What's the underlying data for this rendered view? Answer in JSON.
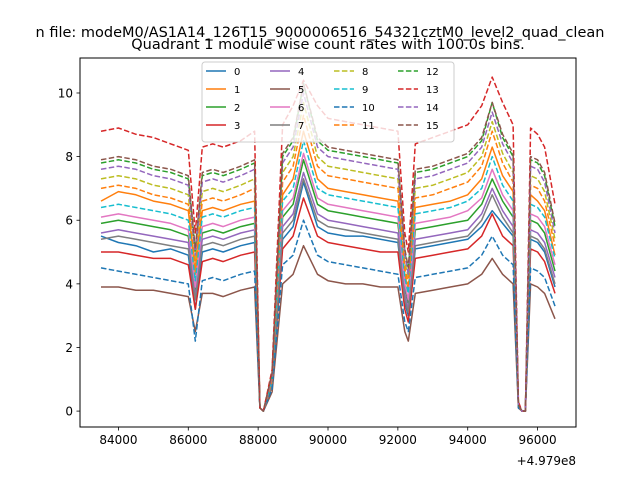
{
  "chart_data": {
    "type": "line",
    "suptitle": "n file: modeM0/AS1A14_126T15_9000006516_54321cztM0_level2_quad_clean",
    "title": "Quadrant 1 module wise count rates with 100.0s bins.",
    "xlabel": "",
    "ylabel": "",
    "x_offset_label": "+4.979e8",
    "xlim": [
      82900,
      97100
    ],
    "ylim": [
      -0.5,
      11.1
    ],
    "xticks": [
      84000,
      86000,
      88000,
      90000,
      92000,
      94000,
      96000
    ],
    "xtick_labels": [
      "84000",
      "86000",
      "88000",
      "90000",
      "92000",
      "94000",
      "96000"
    ],
    "yticks": [
      0,
      2,
      4,
      6,
      8,
      10
    ],
    "ytick_labels": [
      "0",
      "2",
      "4",
      "6",
      "8",
      "10"
    ],
    "legend_position": "upper center",
    "x": [
      83500,
      84000,
      84500,
      85000,
      85500,
      86000,
      86200,
      86400,
      86700,
      87000,
      87500,
      87900,
      88050,
      88150,
      88400,
      88700,
      89000,
      89300,
      89700,
      90000,
      90500,
      91000,
      91500,
      92000,
      92200,
      92300,
      92500,
      93000,
      93500,
      94000,
      94400,
      94700,
      95000,
      95300,
      95450,
      95550,
      95650,
      95800,
      96000,
      96200,
      96500
    ],
    "series": [
      {
        "name": "0",
        "color": "#1f77b4",
        "dash": "solid",
        "values": [
          5.5,
          5.3,
          5.2,
          5.0,
          5.1,
          4.9,
          3.2,
          5.0,
          5.1,
          5.0,
          5.2,
          5.3,
          0.1,
          0.0,
          0.8,
          5.4,
          5.8,
          7.2,
          5.8,
          5.6,
          5.5,
          5.5,
          5.4,
          5.3,
          3.4,
          3.0,
          5.1,
          5.2,
          5.3,
          5.4,
          5.8,
          6.3,
          5.9,
          5.5,
          0.2,
          0.0,
          0.0,
          5.4,
          5.3,
          5.0,
          3.9
        ]
      },
      {
        "name": "1",
        "color": "#ff7f0e",
        "dash": "solid",
        "values": [
          6.6,
          6.9,
          6.8,
          6.6,
          6.5,
          6.3,
          4.3,
          6.3,
          6.4,
          6.3,
          6.5,
          6.6,
          0.1,
          0.0,
          1.0,
          6.8,
          7.3,
          8.8,
          7.3,
          7.0,
          6.9,
          6.8,
          6.7,
          6.6,
          4.3,
          3.8,
          6.4,
          6.5,
          6.6,
          6.8,
          7.3,
          8.3,
          7.4,
          6.9,
          0.2,
          0.0,
          0.0,
          6.8,
          6.6,
          6.3,
          4.9
        ]
      },
      {
        "name": "2",
        "color": "#2ca02c",
        "dash": "solid",
        "values": [
          5.9,
          6.0,
          5.9,
          5.8,
          5.7,
          5.5,
          3.8,
          5.6,
          5.7,
          5.6,
          5.8,
          5.9,
          0.1,
          0.0,
          0.9,
          6.1,
          6.5,
          7.9,
          6.5,
          6.3,
          6.2,
          6.1,
          6.0,
          5.9,
          3.9,
          3.4,
          5.7,
          5.8,
          5.9,
          6.0,
          6.5,
          7.3,
          6.6,
          6.1,
          0.2,
          0.0,
          0.0,
          6.0,
          5.9,
          5.6,
          4.4
        ]
      },
      {
        "name": "3",
        "color": "#d62728",
        "dash": "solid",
        "values": [
          5.0,
          5.0,
          4.9,
          4.8,
          4.8,
          4.6,
          3.2,
          4.7,
          4.8,
          4.7,
          4.9,
          5.0,
          0.1,
          0.0,
          0.8,
          5.1,
          5.5,
          6.7,
          5.5,
          5.3,
          5.2,
          5.1,
          5.0,
          5.0,
          3.2,
          2.8,
          4.8,
          4.9,
          5.0,
          5.1,
          5.5,
          6.2,
          5.5,
          5.2,
          0.2,
          0.0,
          0.0,
          5.1,
          5.0,
          4.7,
          3.7
        ]
      },
      {
        "name": "4",
        "color": "#9467bd",
        "dash": "solid",
        "values": [
          5.6,
          5.7,
          5.6,
          5.5,
          5.4,
          5.3,
          3.6,
          5.4,
          5.5,
          5.4,
          5.6,
          5.7,
          0.1,
          0.0,
          0.9,
          5.8,
          6.2,
          7.5,
          6.2,
          6.0,
          5.9,
          5.8,
          5.7,
          5.6,
          3.7,
          3.2,
          5.4,
          5.5,
          5.6,
          5.7,
          6.2,
          7.0,
          6.3,
          5.8,
          0.2,
          0.0,
          0.0,
          5.7,
          5.6,
          5.3,
          4.2
        ]
      },
      {
        "name": "5",
        "color": "#8c564b",
        "dash": "solid",
        "values": [
          3.9,
          3.9,
          3.8,
          3.8,
          3.7,
          3.6,
          2.5,
          3.7,
          3.7,
          3.6,
          3.8,
          3.9,
          0.1,
          0.0,
          0.6,
          4.0,
          4.3,
          5.2,
          4.3,
          4.1,
          4.0,
          4.0,
          3.9,
          3.9,
          2.5,
          2.2,
          3.7,
          3.8,
          3.9,
          4.0,
          4.3,
          4.8,
          4.3,
          4.0,
          0.1,
          0.0,
          0.0,
          4.0,
          3.9,
          3.7,
          2.9
        ]
      },
      {
        "name": "6",
        "color": "#e377c2",
        "dash": "solid",
        "values": [
          6.1,
          6.2,
          6.1,
          6.0,
          5.9,
          5.7,
          3.9,
          5.8,
          5.9,
          5.8,
          6.0,
          6.1,
          0.1,
          0.0,
          0.9,
          6.3,
          6.7,
          8.1,
          6.7,
          6.5,
          6.4,
          6.3,
          6.2,
          6.1,
          4.0,
          3.5,
          5.9,
          6.0,
          6.1,
          6.3,
          6.7,
          7.6,
          6.8,
          6.3,
          0.2,
          0.0,
          0.0,
          6.2,
          6.1,
          5.8,
          4.6
        ]
      },
      {
        "name": "7",
        "color": "#7f7f7f",
        "dash": "solid",
        "values": [
          5.4,
          5.5,
          5.4,
          5.3,
          5.2,
          5.1,
          3.5,
          5.2,
          5.3,
          5.2,
          5.4,
          5.5,
          0.1,
          0.0,
          0.8,
          5.6,
          6.0,
          7.3,
          6.0,
          5.8,
          5.7,
          5.6,
          5.5,
          5.4,
          3.5,
          3.1,
          5.2,
          5.3,
          5.4,
          5.5,
          6.0,
          6.8,
          6.1,
          5.6,
          0.2,
          0.0,
          0.0,
          5.5,
          5.4,
          5.1,
          4.0
        ]
      },
      {
        "name": "8",
        "color": "#bcbd22",
        "dash": "dashed",
        "values": [
          7.3,
          7.4,
          7.3,
          7.1,
          7.0,
          6.8,
          4.7,
          6.9,
          7.0,
          6.9,
          7.1,
          7.3,
          0.1,
          0.0,
          1.1,
          7.5,
          8.0,
          9.7,
          8.0,
          7.7,
          7.6,
          7.5,
          7.4,
          7.3,
          4.7,
          4.2,
          7.0,
          7.1,
          7.3,
          7.5,
          8.0,
          9.1,
          8.1,
          7.5,
          0.2,
          0.0,
          0.0,
          7.4,
          7.3,
          6.9,
          5.4
        ]
      },
      {
        "name": "9",
        "color": "#17becf",
        "dash": "dashed",
        "values": [
          6.4,
          6.5,
          6.4,
          6.3,
          6.2,
          6.0,
          4.1,
          6.1,
          6.2,
          6.1,
          6.3,
          6.4,
          0.1,
          0.0,
          1.0,
          6.6,
          7.0,
          8.5,
          7.0,
          6.8,
          6.7,
          6.6,
          6.5,
          6.4,
          4.2,
          3.7,
          6.2,
          6.3,
          6.4,
          6.6,
          7.0,
          8.0,
          7.1,
          6.6,
          0.2,
          0.0,
          0.0,
          6.5,
          6.4,
          6.1,
          4.8
        ]
      },
      {
        "name": "10",
        "color": "#1f77b4",
        "dash": "dashed",
        "values": [
          4.5,
          4.4,
          4.3,
          4.2,
          4.1,
          4.0,
          2.2,
          4.1,
          4.2,
          4.1,
          4.3,
          4.4,
          0.1,
          0.0,
          0.7,
          4.6,
          4.9,
          6.0,
          4.9,
          4.7,
          4.6,
          4.5,
          4.4,
          4.3,
          2.8,
          2.5,
          4.2,
          4.3,
          4.4,
          4.5,
          4.9,
          5.5,
          4.9,
          4.6,
          0.1,
          0.0,
          0.0,
          4.5,
          4.4,
          4.2,
          3.3
        ]
      },
      {
        "name": "11",
        "color": "#ff7f0e",
        "dash": "dashed",
        "values": [
          7.0,
          7.1,
          7.0,
          6.8,
          6.7,
          6.5,
          4.5,
          6.6,
          6.7,
          6.6,
          6.8,
          7.0,
          0.1,
          0.0,
          1.0,
          7.2,
          7.7,
          9.3,
          7.7,
          7.4,
          7.3,
          7.2,
          7.1,
          7.0,
          4.5,
          4.0,
          6.7,
          6.8,
          7.0,
          7.2,
          7.7,
          8.8,
          7.8,
          7.2,
          0.2,
          0.0,
          0.0,
          7.1,
          7.0,
          6.6,
          5.2
        ]
      },
      {
        "name": "12",
        "color": "#2ca02c",
        "dash": "dashed",
        "values": [
          7.8,
          7.9,
          7.8,
          7.6,
          7.5,
          7.3,
          5.0,
          7.4,
          7.5,
          7.4,
          7.6,
          7.8,
          0.1,
          0.0,
          1.2,
          8.0,
          8.5,
          10.3,
          8.5,
          8.2,
          8.1,
          8.0,
          7.9,
          7.8,
          5.0,
          4.4,
          7.5,
          7.6,
          7.8,
          8.0,
          8.5,
          9.7,
          8.6,
          8.0,
          0.2,
          0.0,
          0.0,
          7.9,
          7.8,
          7.4,
          5.8
        ]
      },
      {
        "name": "13",
        "color": "#d62728",
        "dash": "dashed",
        "values": [
          8.8,
          8.9,
          8.7,
          8.6,
          8.4,
          8.2,
          5.6,
          8.3,
          8.4,
          8.3,
          8.5,
          8.8,
          0.1,
          0.0,
          1.3,
          9.0,
          9.6,
          10.4,
          9.6,
          9.2,
          9.1,
          9.0,
          8.9,
          8.8,
          5.6,
          5.0,
          8.4,
          8.6,
          8.8,
          9.0,
          9.6,
          10.5,
          9.7,
          9.0,
          0.3,
          0.0,
          0.0,
          8.9,
          8.7,
          8.3,
          6.5
        ]
      },
      {
        "name": "14",
        "color": "#9467bd",
        "dash": "dashed",
        "values": [
          7.6,
          7.7,
          7.6,
          7.4,
          7.3,
          7.1,
          4.9,
          7.2,
          7.3,
          7.2,
          7.4,
          7.6,
          0.1,
          0.0,
          1.1,
          7.8,
          8.3,
          10.0,
          8.3,
          8.0,
          7.9,
          7.8,
          7.7,
          7.6,
          4.9,
          4.3,
          7.3,
          7.4,
          7.6,
          7.8,
          8.3,
          9.4,
          8.4,
          7.8,
          0.2,
          0.0,
          0.0,
          7.7,
          7.6,
          7.2,
          5.6
        ]
      },
      {
        "name": "15",
        "color": "#8c564b",
        "dash": "dashed",
        "values": [
          7.9,
          8.0,
          7.9,
          7.7,
          7.6,
          7.4,
          5.1,
          7.5,
          7.6,
          7.5,
          7.7,
          7.9,
          0.1,
          0.0,
          1.2,
          8.1,
          8.6,
          10.3,
          8.6,
          8.3,
          8.2,
          8.1,
          8.0,
          7.9,
          5.1,
          4.5,
          7.6,
          7.7,
          7.9,
          8.1,
          8.6,
          9.7,
          8.7,
          8.1,
          0.2,
          0.0,
          0.0,
          8.0,
          7.9,
          7.5,
          5.9
        ]
      }
    ]
  }
}
